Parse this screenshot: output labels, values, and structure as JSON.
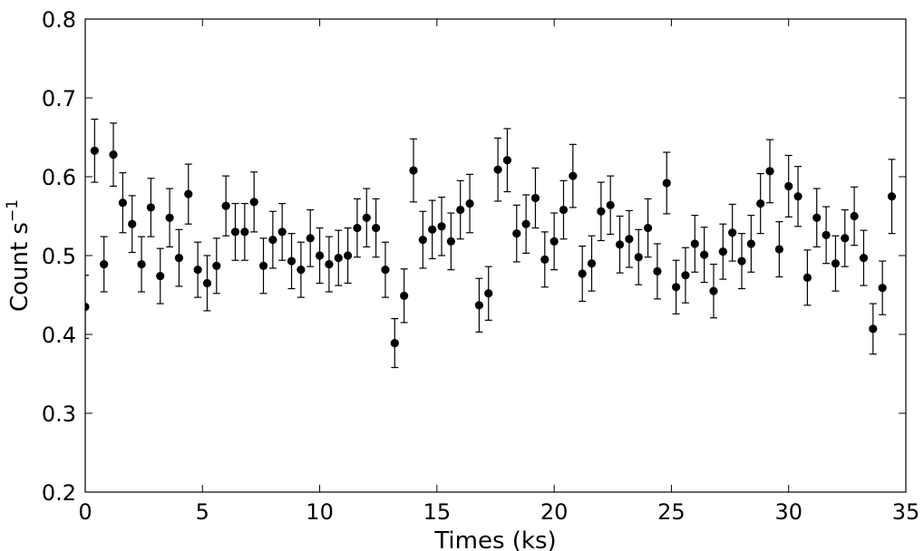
{
  "chart_data": {
    "type": "scatter",
    "xlabel": "Times (ks)",
    "ylabel_main": "Count s",
    "ylabel_sup": "−1",
    "xlim": [
      0,
      35
    ],
    "ylim": [
      0.2,
      0.8
    ],
    "xticks": [
      0,
      5,
      10,
      15,
      20,
      25,
      30,
      35
    ],
    "yticks": [
      0.2,
      0.3,
      0.4,
      0.5,
      0.6,
      0.7,
      0.8
    ],
    "xtick_labels": [
      "0",
      "5",
      "10",
      "15",
      "20",
      "25",
      "30",
      "35"
    ],
    "ytick_labels": [
      "0.2",
      "0.3",
      "0.4",
      "0.5",
      "0.6",
      "0.7",
      "0.8"
    ],
    "grid": false,
    "marker_color": "#000000",
    "series": [
      {
        "x": [
          0.0,
          0.4,
          0.8,
          1.2,
          1.6,
          2.0,
          2.4,
          2.8,
          3.2,
          3.6,
          4.0,
          4.4,
          4.8,
          5.2,
          5.6,
          6.0,
          6.4,
          6.8,
          7.2,
          7.6,
          8.0,
          8.4,
          8.8,
          9.2,
          9.6,
          10.0,
          10.4,
          10.8,
          11.2,
          11.6,
          12.0,
          12.4,
          12.8,
          13.2,
          13.6,
          14.0,
          14.4,
          14.8,
          15.2,
          15.6,
          16.0,
          16.4,
          16.8,
          17.2,
          17.6,
          18.0,
          18.4,
          18.8,
          19.2,
          19.6,
          20.0,
          20.4,
          20.8,
          21.2,
          21.6,
          22.0,
          22.4,
          22.8,
          23.2,
          23.6,
          24.0,
          24.4,
          24.8,
          25.2,
          25.6,
          26.0,
          26.4,
          26.8,
          27.2,
          27.6,
          28.0,
          28.4,
          28.8,
          29.2,
          29.6,
          30.0,
          30.4,
          30.8,
          31.2,
          31.6,
          32.0,
          32.4,
          32.8,
          33.2,
          33.6,
          34.0,
          34.4
        ],
        "y": [
          0.435,
          0.633,
          0.489,
          0.628,
          0.567,
          0.54,
          0.489,
          0.561,
          0.474,
          0.548,
          0.497,
          0.578,
          0.482,
          0.465,
          0.487,
          0.563,
          0.53,
          0.53,
          0.568,
          0.487,
          0.52,
          0.53,
          0.493,
          0.482,
          0.522,
          0.5,
          0.489,
          0.497,
          0.5,
          0.535,
          0.548,
          0.535,
          0.482,
          0.389,
          0.449,
          0.608,
          0.52,
          0.533,
          0.537,
          0.518,
          0.558,
          0.566,
          0.437,
          0.452,
          0.609,
          0.621,
          0.528,
          0.54,
          0.573,
          0.495,
          0.518,
          0.558,
          0.601,
          0.477,
          0.49,
          0.556,
          0.564,
          0.514,
          0.521,
          0.498,
          0.535,
          0.48,
          0.592,
          0.46,
          0.475,
          0.515,
          0.501,
          0.455,
          0.505,
          0.529,
          0.493,
          0.515,
          0.566,
          0.607,
          0.508,
          0.588,
          0.575,
          0.472,
          0.548,
          0.526,
          0.49,
          0.522,
          0.55,
          0.497,
          0.407,
          0.459,
          0.575
        ],
        "err": [
          0.04,
          0.04,
          0.035,
          0.04,
          0.038,
          0.036,
          0.035,
          0.037,
          0.035,
          0.037,
          0.036,
          0.038,
          0.035,
          0.035,
          0.035,
          0.038,
          0.036,
          0.036,
          0.038,
          0.035,
          0.036,
          0.036,
          0.035,
          0.035,
          0.036,
          0.035,
          0.035,
          0.035,
          0.035,
          0.037,
          0.037,
          0.037,
          0.035,
          0.031,
          0.034,
          0.04,
          0.036,
          0.037,
          0.037,
          0.036,
          0.037,
          0.037,
          0.034,
          0.034,
          0.04,
          0.04,
          0.036,
          0.037,
          0.038,
          0.035,
          0.036,
          0.037,
          0.04,
          0.035,
          0.035,
          0.037,
          0.037,
          0.036,
          0.036,
          0.035,
          0.037,
          0.035,
          0.039,
          0.034,
          0.035,
          0.036,
          0.035,
          0.034,
          0.035,
          0.036,
          0.035,
          0.036,
          0.038,
          0.04,
          0.035,
          0.039,
          0.038,
          0.035,
          0.037,
          0.036,
          0.035,
          0.036,
          0.037,
          0.035,
          0.032,
          0.034,
          0.047
        ]
      }
    ]
  }
}
